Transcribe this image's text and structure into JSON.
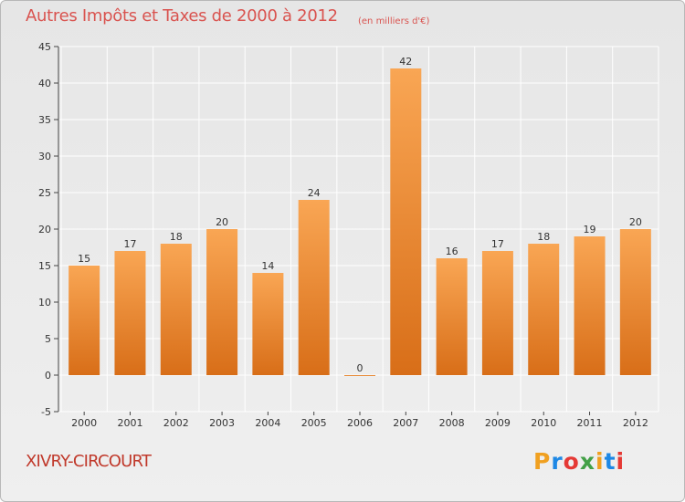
{
  "header": {
    "title": "Autres Impôts et Taxes de 2000 à 2012",
    "unit": "(en milliers d'€)"
  },
  "footer": {
    "commune": "XIVRY-CIRCOURT",
    "logo_letters": [
      "P",
      "r",
      "o",
      "x",
      "i",
      "t",
      "i"
    ],
    "logo_colors": [
      "#f0a020",
      "#1e88e5",
      "#e53935",
      "#43a047",
      "#f0a020",
      "#1e88e5",
      "#e53935"
    ]
  },
  "colors": {
    "bar_light": "#f9a654",
    "bar_dark": "#d86e18",
    "axis": "#444444",
    "grid": "#ffffff"
  },
  "chart_data": {
    "type": "bar",
    "title": "Autres Impôts et Taxes de 2000 à 2012",
    "subtitle": "(en milliers d'€)",
    "xlabel": "",
    "ylabel": "",
    "categories": [
      "2000",
      "2001",
      "2002",
      "2003",
      "2004",
      "2005",
      "2006",
      "2007",
      "2008",
      "2009",
      "2010",
      "2011",
      "2012"
    ],
    "values": [
      15,
      17,
      18,
      20,
      14,
      24,
      0,
      42,
      16,
      17,
      18,
      19,
      20
    ],
    "ylim": [
      -5,
      45
    ],
    "yticks": [
      -5,
      0,
      5,
      10,
      15,
      20,
      25,
      30,
      35,
      40,
      45
    ],
    "grid": true,
    "legend": "none"
  }
}
